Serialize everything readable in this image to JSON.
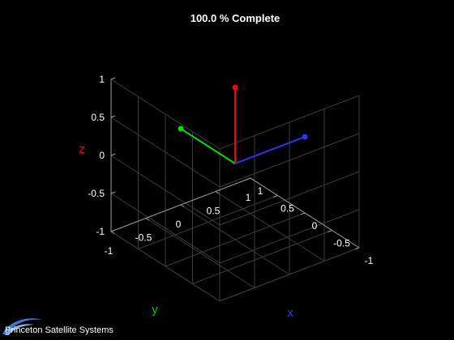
{
  "chart_data": {
    "type": "line",
    "title": "100.0 % Complete",
    "xlabel": "x",
    "ylabel": "y",
    "zlabel": "z",
    "xlim": [
      -1,
      1
    ],
    "ylim": [
      -1,
      1
    ],
    "zlim": [
      -1,
      1
    ],
    "x_ticks": [
      "-1",
      "-0.5",
      "0",
      "0.5",
      "1"
    ],
    "y_ticks": [
      "-1",
      "-0.5",
      "0",
      "0.5",
      "1"
    ],
    "z_ticks": [
      "-1",
      "-0.5",
      "0",
      "0.5",
      "1"
    ],
    "grid": true,
    "series": [
      {
        "axis": "x",
        "color": "#3333ff",
        "start": [
          0,
          0,
          0
        ],
        "end": [
          1,
          0,
          0
        ]
      },
      {
        "axis": "y",
        "color": "#00dd00",
        "start": [
          0,
          0,
          0
        ],
        "end": [
          0,
          1,
          0
        ]
      },
      {
        "axis": "z",
        "color": "#ff0000",
        "start": [
          0,
          0,
          0
        ],
        "end": [
          0,
          0,
          1
        ]
      }
    ],
    "label_colors": {
      "x": "#3333ff",
      "y": "#00cc00",
      "z": "#ff0000"
    }
  },
  "footer": {
    "brand": "Princeton Satellite Systems",
    "logo_icon": "swoosh-logo-icon"
  }
}
